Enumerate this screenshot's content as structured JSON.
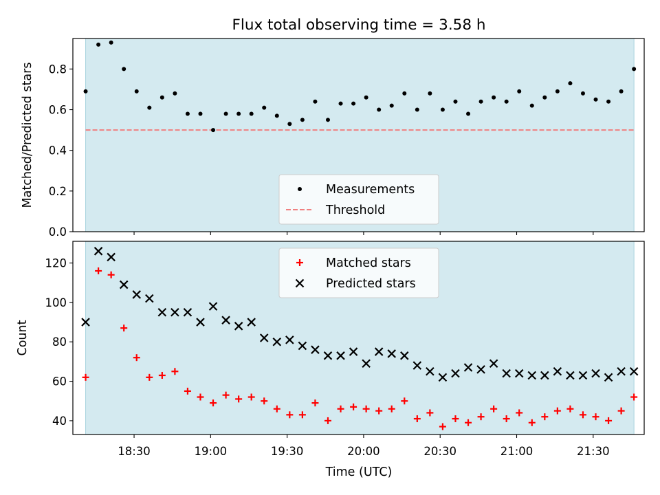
{
  "figure": {
    "title": "Flux total observing time = 3.58 h",
    "xlabel": "Time (UTC)",
    "x_tick_labels": [
      "18:30",
      "19:00",
      "19:30",
      "20:00",
      "20:30",
      "21:00",
      "21:30"
    ],
    "shade_color": "#d4eaf0",
    "shade_border": "#a8d3de"
  },
  "chart_data": [
    {
      "type": "scatter",
      "ylabel": "Matched/Predicted stars",
      "ylim": [
        0,
        0.95
      ],
      "y_ticks": [
        0.0,
        0.2,
        0.4,
        0.6,
        0.8
      ],
      "y_tick_labels": [
        "0.0",
        "0.2",
        "0.4",
        "0.6",
        "0.8"
      ],
      "legend_position": "bottom-center",
      "threshold": {
        "name": "Threshold",
        "value": 0.5,
        "color": "#f08080",
        "style": "dashed"
      },
      "series": [
        {
          "name": "Measurements",
          "marker": "dot",
          "color": "#000000",
          "x": [
            "18:11",
            "18:16",
            "18:21",
            "18:26",
            "18:31",
            "18:36",
            "18:41",
            "18:46",
            "18:51",
            "18:56",
            "19:01",
            "19:06",
            "19:11",
            "19:16",
            "19:21",
            "19:26",
            "19:31",
            "19:36",
            "19:41",
            "19:46",
            "19:51",
            "19:56",
            "20:01",
            "20:06",
            "20:11",
            "20:16",
            "20:21",
            "20:26",
            "20:31",
            "20:36",
            "20:41",
            "20:46",
            "20:51",
            "20:56",
            "21:01",
            "21:06",
            "21:11",
            "21:16",
            "21:21",
            "21:26",
            "21:31",
            "21:36",
            "21:41",
            "21:46"
          ],
          "y": [
            0.69,
            0.92,
            0.93,
            0.8,
            0.69,
            0.61,
            0.66,
            0.68,
            0.58,
            0.58,
            0.5,
            0.58,
            0.58,
            0.58,
            0.61,
            0.57,
            0.53,
            0.55,
            0.64,
            0.55,
            0.63,
            0.63,
            0.66,
            0.6,
            0.62,
            0.68,
            0.6,
            0.68,
            0.6,
            0.64,
            0.58,
            0.64,
            0.66,
            0.64,
            0.69,
            0.62,
            0.66,
            0.69,
            0.73,
            0.68,
            0.65,
            0.64,
            0.69,
            0.8
          ]
        }
      ]
    },
    {
      "type": "scatter",
      "ylabel": "Count",
      "ylim": [
        33,
        131
      ],
      "y_ticks": [
        40,
        60,
        80,
        100,
        120
      ],
      "y_tick_labels": [
        "40",
        "60",
        "80",
        "100",
        "120"
      ],
      "legend_position": "top-center",
      "series": [
        {
          "name": "Matched stars",
          "marker": "plus",
          "color": "#ff0000",
          "x": [
            "18:11",
            "18:16",
            "18:21",
            "18:26",
            "18:31",
            "18:36",
            "18:41",
            "18:46",
            "18:51",
            "18:56",
            "19:01",
            "19:06",
            "19:11",
            "19:16",
            "19:21",
            "19:26",
            "19:31",
            "19:36",
            "19:41",
            "19:46",
            "19:51",
            "19:56",
            "20:01",
            "20:06",
            "20:11",
            "20:16",
            "20:21",
            "20:26",
            "20:31",
            "20:36",
            "20:41",
            "20:46",
            "20:51",
            "20:56",
            "21:01",
            "21:06",
            "21:11",
            "21:16",
            "21:21",
            "21:26",
            "21:31",
            "21:36",
            "21:41",
            "21:46"
          ],
          "y": [
            62,
            116,
            114,
            87,
            72,
            62,
            63,
            65,
            55,
            52,
            49,
            53,
            51,
            52,
            50,
            46,
            43,
            43,
            49,
            40,
            46,
            47,
            46,
            45,
            46,
            50,
            41,
            44,
            37,
            41,
            39,
            42,
            46,
            41,
            44,
            39,
            42,
            45,
            46,
            43,
            42,
            40,
            45,
            52
          ]
        },
        {
          "name": "Predicted stars",
          "marker": "x",
          "color": "#000000",
          "x": [
            "18:11",
            "18:16",
            "18:21",
            "18:26",
            "18:31",
            "18:36",
            "18:41",
            "18:46",
            "18:51",
            "18:56",
            "19:01",
            "19:06",
            "19:11",
            "19:16",
            "19:21",
            "19:26",
            "19:31",
            "19:36",
            "19:41",
            "19:46",
            "19:51",
            "19:56",
            "20:01",
            "20:06",
            "20:11",
            "20:16",
            "20:21",
            "20:26",
            "20:31",
            "20:36",
            "20:41",
            "20:46",
            "20:51",
            "20:56",
            "21:01",
            "21:06",
            "21:11",
            "21:16",
            "21:21",
            "21:26",
            "21:31",
            "21:36",
            "21:41",
            "21:46"
          ],
          "y": [
            90,
            126,
            123,
            109,
            104,
            102,
            95,
            95,
            95,
            90,
            98,
            91,
            88,
            90,
            82,
            80,
            81,
            78,
            76,
            73,
            73,
            75,
            69,
            75,
            74,
            73,
            68,
            65,
            62,
            64,
            67,
            66,
            69,
            64,
            64,
            63,
            63,
            65,
            63,
            63,
            64,
            62,
            65,
            65
          ]
        }
      ]
    }
  ]
}
